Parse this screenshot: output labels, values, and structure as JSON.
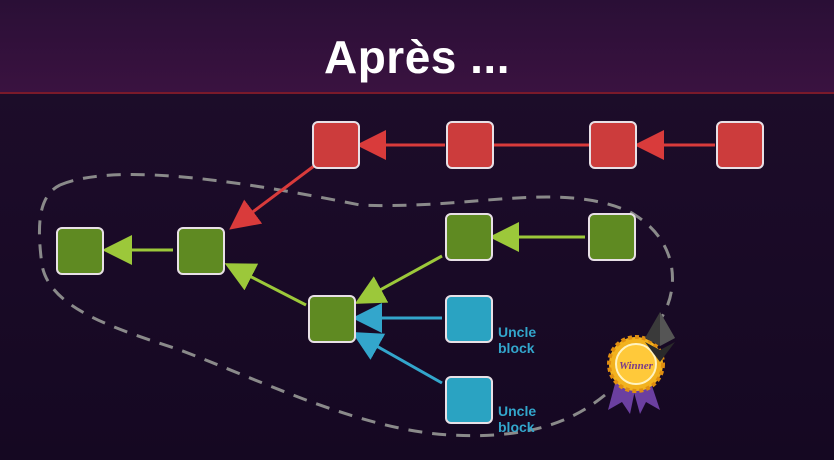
{
  "header": {
    "title": "Après ..."
  },
  "labels": {
    "uncle1": "Uncle\nblock",
    "uncle2": "Uncle\nblock",
    "badge": "Winner"
  },
  "colors": {
    "red_block": "#cc3c3c",
    "green_block": "#5f8a22",
    "blue_block": "#2aa3c2",
    "red_arrow": "#d93b3b",
    "green_arrow": "#9cc83a",
    "blue_arrow": "#33a6cc",
    "dashed_outline": "#8a8a8a"
  },
  "icons": {
    "winner_badge": "winner-badge-icon",
    "ethereum": "ethereum-icon"
  }
}
